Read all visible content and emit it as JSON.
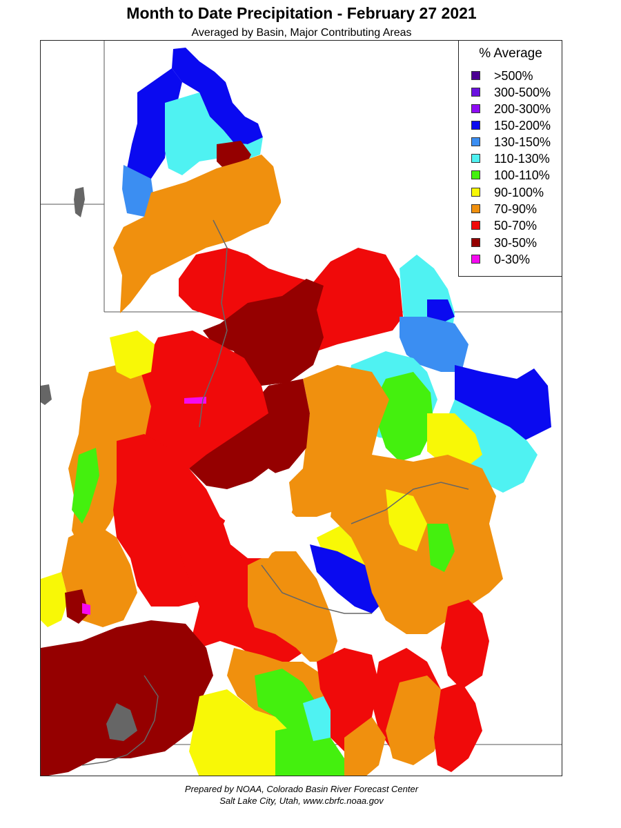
{
  "title": "Month to Date Precipitation - February 27 2021",
  "subtitle": "Averaged by Basin, Major Contributing Areas",
  "legend": {
    "title": "% Average",
    "items": [
      {
        "label": ">500%",
        "color": "#4b0092"
      },
      {
        "label": "300-500%",
        "color": "#6a11e0"
      },
      {
        "label": "200-300%",
        "color": "#8e0bf5"
      },
      {
        "label": "150-200%",
        "color": "#0a0af0"
      },
      {
        "label": "130-150%",
        "color": "#3b8ef2"
      },
      {
        "label": "110-130%",
        "color": "#4ff2f2"
      },
      {
        "label": "100-110%",
        "color": "#44f00e"
      },
      {
        "label": "90-100%",
        "color": "#f8f806"
      },
      {
        "label": "70-90%",
        "color": "#f0900e"
      },
      {
        "label": "50-70%",
        "color": "#f00a0a"
      },
      {
        "label": "30-50%",
        "color": "#950000"
      },
      {
        "label": "0-30%",
        "color": "#f50af0"
      }
    ]
  },
  "footer": {
    "line1": "Prepared by NOAA, Colorado Basin River Forecast Center",
    "line2": "Salt Lake City, Utah, www.cbrfc.noaa.gov"
  }
}
